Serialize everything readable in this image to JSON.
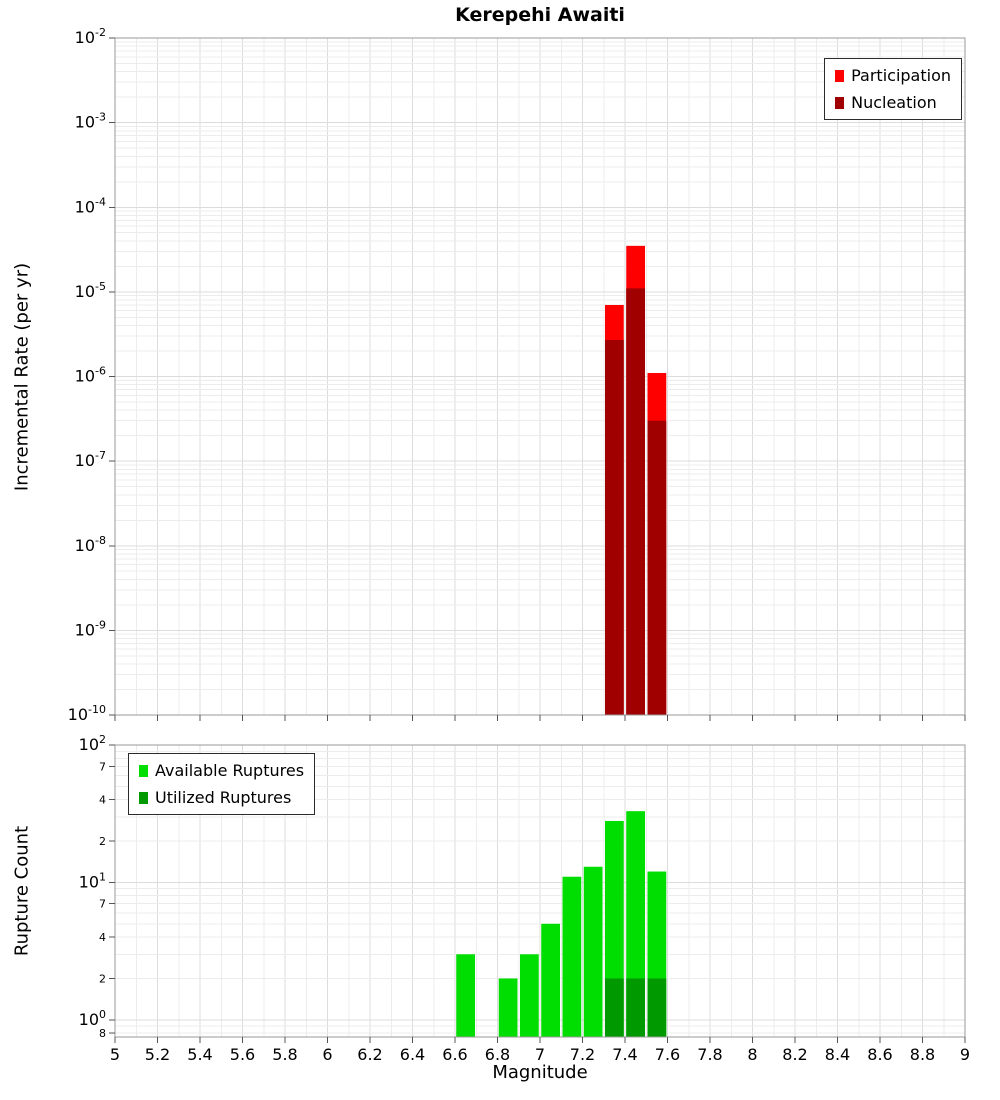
{
  "chart_data": [
    {
      "type": "bar",
      "title": "Kerepehi Awaiti",
      "xlabel": "",
      "ylabel": "Incremental Rate (per yr)",
      "bin_width": 0.1,
      "x_axis": {
        "min": 5,
        "max": 9,
        "tick_step": 0.2,
        "tick_labels": [
          "5",
          "5.2",
          "5.4",
          "5.6",
          "5.8",
          "6",
          "6.2",
          "6.4",
          "6.6",
          "6.8",
          "7",
          "7.2",
          "7.4",
          "7.6",
          "7.8",
          "8",
          "8.2",
          "8.4",
          "8.6",
          "8.8",
          "9"
        ],
        "show_tick_labels": false
      },
      "y_axis": {
        "scale": "log",
        "min": 1e-10,
        "max": 0.01,
        "ticks": [
          {
            "label": "10",
            "sup": "-2",
            "log10": -2
          },
          {
            "label": "10",
            "sup": "-3",
            "log10": -3
          },
          {
            "label": "10",
            "sup": "-4",
            "log10": -4
          },
          {
            "label": "10",
            "sup": "-5",
            "log10": -5
          },
          {
            "label": "10",
            "sup": "-6",
            "log10": -6
          },
          {
            "label": "10",
            "sup": "-7",
            "log10": -7
          },
          {
            "label": "10",
            "sup": "-8",
            "log10": -8
          },
          {
            "label": "10",
            "sup": "-9",
            "log10": -9
          },
          {
            "label": "10",
            "sup": "-10",
            "log10": -10
          }
        ]
      },
      "legend_position": "top-right",
      "series": [
        {
          "name": "Participation",
          "color": "#FF0000",
          "x": [
            7.35,
            7.45,
            7.55
          ],
          "y": [
            7e-06,
            3.5e-05,
            1.1e-06
          ]
        },
        {
          "name": "Nucleation",
          "color": "#A00000",
          "x": [
            7.35,
            7.45,
            7.55
          ],
          "y": [
            2.7e-06,
            1.1e-05,
            3e-07
          ]
        }
      ]
    },
    {
      "type": "bar",
      "title": "",
      "xlabel": "Magnitude",
      "ylabel": "Rupture Count",
      "bin_width": 0.1,
      "x_axis": {
        "min": 5,
        "max": 9,
        "tick_step": 0.2,
        "tick_labels": [
          "5",
          "5.2",
          "5.4",
          "5.6",
          "5.8",
          "6",
          "6.2",
          "6.4",
          "6.6",
          "6.8",
          "7",
          "7.2",
          "7.4",
          "7.6",
          "7.8",
          "8",
          "8.2",
          "8.4",
          "8.6",
          "8.8",
          "9"
        ],
        "show_tick_labels": true
      },
      "y_axis": {
        "scale": "log",
        "min": 0.75,
        "max": 100,
        "ticks": [
          {
            "label": "10",
            "sup": "2",
            "log10": 2
          },
          {
            "label": "7",
            "sup": "",
            "log10": 1.8451
          },
          {
            "label": "4",
            "sup": "",
            "log10": 1.6021
          },
          {
            "label": "2",
            "sup": "",
            "log10": 1.301
          },
          {
            "label": "10",
            "sup": "1",
            "log10": 1
          },
          {
            "label": "7",
            "sup": "",
            "log10": 0.8451
          },
          {
            "label": "4",
            "sup": "",
            "log10": 0.6021
          },
          {
            "label": "2",
            "sup": "",
            "log10": 0.301
          },
          {
            "label": "10",
            "sup": "0",
            "log10": 0
          },
          {
            "label": "8",
            "sup": "",
            "log10": -0.0969
          }
        ]
      },
      "legend_position": "top-left",
      "series": [
        {
          "name": "Available Ruptures",
          "color": "#00DD00",
          "x": [
            6.65,
            6.85,
            6.95,
            7.05,
            7.15,
            7.25,
            7.35,
            7.45,
            7.55
          ],
          "y": [
            3,
            2,
            3,
            5,
            11,
            13,
            28,
            33,
            12
          ]
        },
        {
          "name": "Utilized Ruptures",
          "color": "#009900",
          "x": [
            7.35,
            7.45,
            7.55
          ],
          "y": [
            2,
            2,
            2
          ]
        }
      ]
    }
  ]
}
